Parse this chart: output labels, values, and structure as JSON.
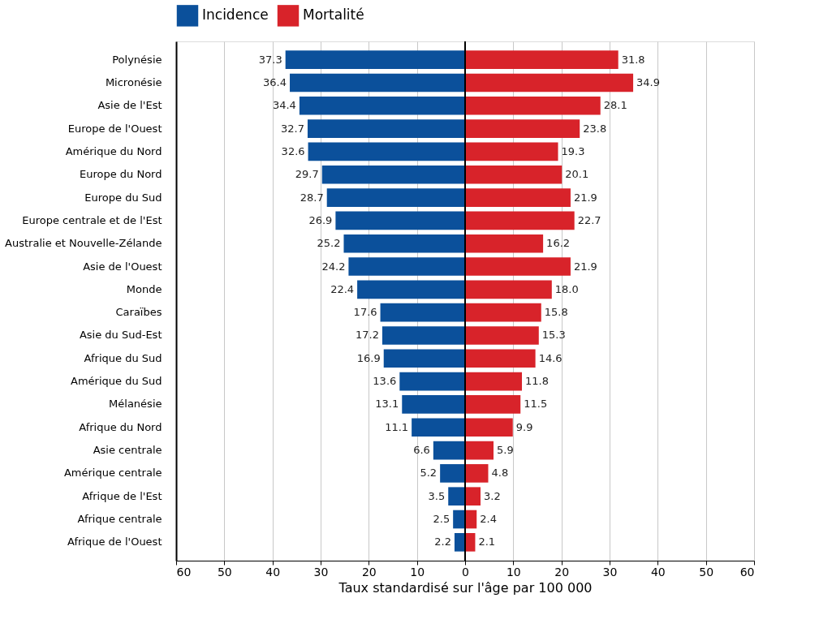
{
  "chart_data": {
    "type": "bar",
    "orientation": "horizontal",
    "xlabel": "Taux standardisé sur l'âge par 100 000",
    "categories": [
      "Polynésie",
      "Micronésie",
      "Asie de l'Est",
      "Europe de l'Ouest",
      "Amérique du Nord",
      "Europe du Nord",
      "Europe du Sud",
      "Europe centrale et de l'Est",
      "Australie et Nouvelle-Zélande",
      "Asie de l'Ouest",
      "Monde",
      "Caraïbes",
      "Asie du Sud-Est",
      "Afrique du Sud",
      "Amérique du Sud",
      "Mélanésie",
      "Afrique du Nord",
      "Asie centrale",
      "Amérique centrale",
      "Afrique de l'Est",
      "Afrique centrale",
      "Afrique de l'Ouest"
    ],
    "series": [
      {
        "name": "Incidence",
        "color": "#0b509b",
        "values": [
          37.3,
          36.4,
          34.4,
          32.7,
          32.6,
          29.7,
          28.7,
          26.9,
          25.2,
          24.2,
          22.4,
          17.6,
          17.2,
          16.9,
          13.6,
          13.1,
          11.1,
          6.6,
          5.2,
          3.5,
          2.5,
          2.2
        ],
        "base": [
          -37.3,
          -36.4,
          -34.4,
          -32.7,
          -32.6,
          -29.7,
          -28.7,
          -26.9,
          -25.2,
          -24.2,
          -22.4,
          -17.6,
          -17.2,
          -16.9,
          -13.6,
          -13.1,
          -11.1,
          -6.6,
          -5.2,
          -3.5,
          -2.5,
          -2.2
        ],
        "value_labels": [
          "37.3",
          "36.4",
          "34.4",
          "32.7",
          "32.6",
          "29.7",
          "28.7",
          "26.9",
          "25.2",
          "24.2",
          "22.4",
          "17.6",
          "17.2",
          "16.9",
          "13.6",
          "13.1",
          "11.1",
          "6.6",
          "5.2",
          "3.5",
          "2.5",
          "2.2"
        ]
      },
      {
        "name": "Mortalité",
        "color": "#d8232a",
        "values": [
          31.8,
          34.9,
          28.1,
          23.8,
          19.3,
          20.1,
          21.9,
          22.7,
          16.2,
          21.9,
          18.0,
          15.8,
          15.3,
          14.6,
          11.8,
          11.5,
          9.9,
          5.9,
          4.8,
          3.2,
          2.4,
          2.1
        ],
        "value_labels": [
          "31.8",
          "34.9",
          "28.1",
          "23.8",
          "19.3",
          "20.1",
          "21.9",
          "22.7",
          "16.2",
          "21.9",
          "18.0",
          "15.8",
          "15.3",
          "14.6",
          "11.8",
          "11.5",
          "9.9",
          "5.9",
          "4.8",
          "3.2",
          "2.4",
          "2.1"
        ]
      }
    ],
    "xlim": [
      -60,
      60
    ],
    "xticks": [
      {
        "value": -60,
        "label": "60"
      },
      {
        "value": -50,
        "label": "50"
      },
      {
        "value": -40,
        "label": "40"
      },
      {
        "value": -30,
        "label": "30"
      },
      {
        "value": -20,
        "label": "20"
      },
      {
        "value": -10,
        "label": "10"
      },
      0,
      10,
      20,
      30,
      40,
      50,
      60
    ],
    "ref_lines": [
      {
        "axis": "x",
        "value": 0,
        "color": "#000000"
      }
    ],
    "grid": "x",
    "legend": "top"
  }
}
